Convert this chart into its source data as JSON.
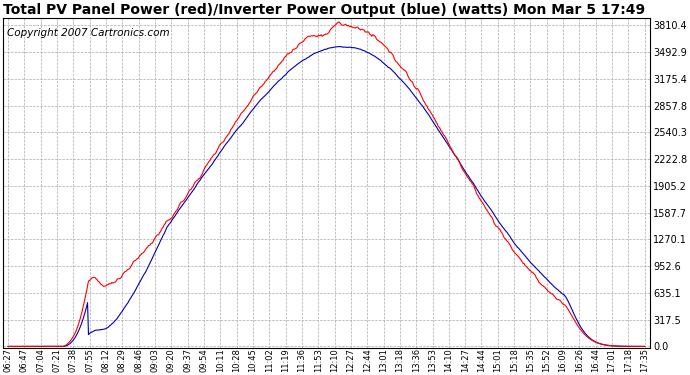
{
  "title": "Total PV Panel Power (red)/Inverter Power Output (blue) (watts) Mon Mar 5 17:49",
  "copyright": "Copyright 2007 Cartronics.com",
  "background_color": "#ffffff",
  "plot_bg_color": "#ffffff",
  "grid_color": "#aaaaaa",
  "y_ticks": [
    0.0,
    317.5,
    635.1,
    952.6,
    1270.1,
    1587.7,
    1905.2,
    2222.8,
    2540.3,
    2857.8,
    3175.4,
    3492.9,
    3810.4
  ],
  "x_tick_labels": [
    "06:27",
    "06:47",
    "07:04",
    "07:21",
    "07:38",
    "07:55",
    "08:12",
    "08:29",
    "08:46",
    "09:03",
    "09:20",
    "09:37",
    "09:54",
    "10:11",
    "10:28",
    "10:45",
    "11:02",
    "11:19",
    "11:36",
    "11:53",
    "12:10",
    "12:27",
    "12:44",
    "13:01",
    "13:18",
    "13:36",
    "13:53",
    "14:10",
    "14:27",
    "14:44",
    "15:01",
    "15:18",
    "15:35",
    "15:52",
    "16:09",
    "16:26",
    "16:44",
    "17:01",
    "17:18",
    "17:35"
  ],
  "red_color": "#ff0000",
  "blue_color": "#0000bb",
  "title_fontsize": 10,
  "copyright_fontsize": 7.5
}
